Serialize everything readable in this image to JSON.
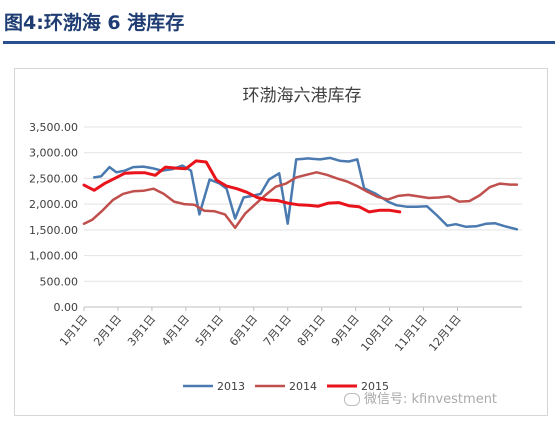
{
  "figure_title": "图4:环渤海 6 港库存",
  "watermark_text": "微信号: kfinvestment",
  "chart_data": {
    "type": "line",
    "title": "环渤海六港库存",
    "x_labels": [
      "1月1日",
      "2月1日",
      "3月1日",
      "4月1日",
      "5月1日",
      "6月1日",
      "7月1日",
      "8月1日",
      "9月1日",
      "10月1日",
      "11月1日",
      "12月1日"
    ],
    "y_ticks": [
      "3,500.00",
      "3,000.00",
      "2,500.00",
      "2,000.00",
      "1,500.00",
      "1,000.00",
      "500.00",
      "0.00"
    ],
    "ylim": [
      0,
      3500
    ],
    "xlim_month": [
      0,
      12
    ],
    "grid": true,
    "legend_position": "bottom",
    "series": [
      {
        "name": "2013",
        "color": "#4a7ab0",
        "x": [
          0.3,
          0.5,
          0.75,
          0.95,
          1.2,
          1.45,
          1.75,
          2.0,
          2.3,
          2.6,
          2.9,
          3.15,
          3.4,
          3.7,
          4.0,
          4.2,
          4.45,
          4.7,
          4.95,
          5.2,
          5.45,
          5.75,
          6.0,
          6.25,
          6.45,
          6.6,
          6.75,
          6.95,
          7.25,
          7.55,
          7.8,
          8.05,
          8.25,
          8.6,
          8.95,
          9.2,
          9.5,
          9.8,
          10.1,
          10.4,
          10.7,
          10.95,
          11.25,
          11.55,
          11.85,
          12.1,
          12.4,
          12.75
        ],
        "y": [
          2520,
          2540,
          2720,
          2620,
          2650,
          2720,
          2730,
          2700,
          2650,
          2680,
          2750,
          2650,
          1800,
          2480,
          2400,
          2300,
          1720,
          2130,
          2160,
          2200,
          2480,
          2600,
          1620,
          2870,
          2880,
          2890,
          2880,
          2870,
          2900,
          2840,
          2830,
          2870,
          2310,
          2200,
          2050,
          1980,
          1950,
          1950,
          1960,
          1780,
          1580,
          1610,
          1560,
          1570,
          1620,
          1630,
          1570,
          1510
        ]
      },
      {
        "name": "2014",
        "color": "#c0504d",
        "x": [
          0.0,
          0.25,
          0.55,
          0.85,
          1.15,
          1.45,
          1.75,
          2.05,
          2.35,
          2.65,
          2.95,
          3.25,
          3.55,
          3.85,
          4.15,
          4.45,
          4.75,
          5.05,
          5.35,
          5.65,
          5.95,
          6.25,
          6.55,
          6.85,
          7.15,
          7.45,
          7.75,
          8.05,
          8.35,
          8.65,
          8.95,
          9.25,
          9.55,
          9.85,
          10.15,
          10.45,
          10.75,
          11.05,
          11.35,
          11.65,
          11.95,
          12.25,
          12.55,
          12.75
        ],
        "y": [
          1620,
          1700,
          1880,
          2080,
          2200,
          2250,
          2260,
          2300,
          2200,
          2050,
          2000,
          1990,
          1870,
          1860,
          1800,
          1540,
          1820,
          2000,
          2180,
          2340,
          2400,
          2520,
          2570,
          2620,
          2570,
          2500,
          2440,
          2350,
          2240,
          2140,
          2090,
          2160,
          2180,
          2150,
          2120,
          2130,
          2150,
          2050,
          2060,
          2170,
          2330,
          2400,
          2380,
          2380
        ]
      },
      {
        "name": "2015",
        "color": "#e8131b",
        "x": [
          0.0,
          0.3,
          0.6,
          0.9,
          1.2,
          1.5,
          1.8,
          2.1,
          2.4,
          2.7,
          3.0,
          3.3,
          3.6,
          3.9,
          4.2,
          4.5,
          4.8,
          5.1,
          5.4,
          5.7,
          6.0,
          6.3,
          6.6,
          6.9,
          7.2,
          7.5,
          7.8,
          8.1,
          8.4,
          8.7,
          9.0,
          9.3
        ],
        "y": [
          2370,
          2270,
          2400,
          2500,
          2600,
          2610,
          2610,
          2560,
          2720,
          2700,
          2690,
          2840,
          2820,
          2470,
          2350,
          2300,
          2230,
          2130,
          2080,
          2070,
          2020,
          1990,
          1980,
          1960,
          2020,
          2030,
          1970,
          1950,
          1850,
          1880,
          1880,
          1850
        ]
      }
    ]
  }
}
